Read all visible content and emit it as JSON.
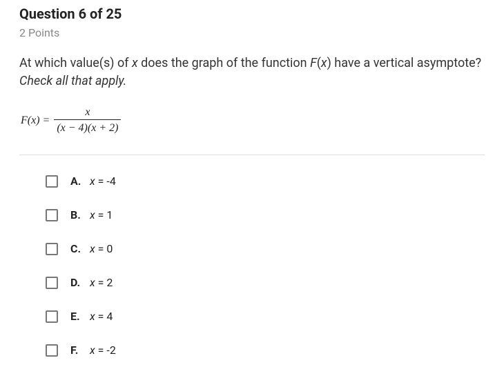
{
  "header": {
    "title": "Question 6 of 25",
    "points": "2 Points"
  },
  "prompt": {
    "part1": "At which value(s) of ",
    "var1": "x",
    "part2": " does the graph of the function ",
    "fn": "F",
    "paren_open": "(",
    "var2": "x",
    "paren_close": ")",
    "part3": " have a vertical asymptote? ",
    "hint": "Check all that apply."
  },
  "formula": {
    "left": "F(x) =",
    "numerator": "x",
    "denominator": "(x − 4)(x + 2)"
  },
  "options": [
    {
      "letter": "A.",
      "var": "x",
      "value": " = -4"
    },
    {
      "letter": "B.",
      "var": "x",
      "value": " = 1"
    },
    {
      "letter": "C.",
      "var": "x",
      "value": " = 0"
    },
    {
      "letter": "D.",
      "var": "x",
      "value": " = 2"
    },
    {
      "letter": "E.",
      "var": "x",
      "value": " = 4"
    },
    {
      "letter": "F.",
      "var": "x",
      "value": " = -2"
    }
  ]
}
